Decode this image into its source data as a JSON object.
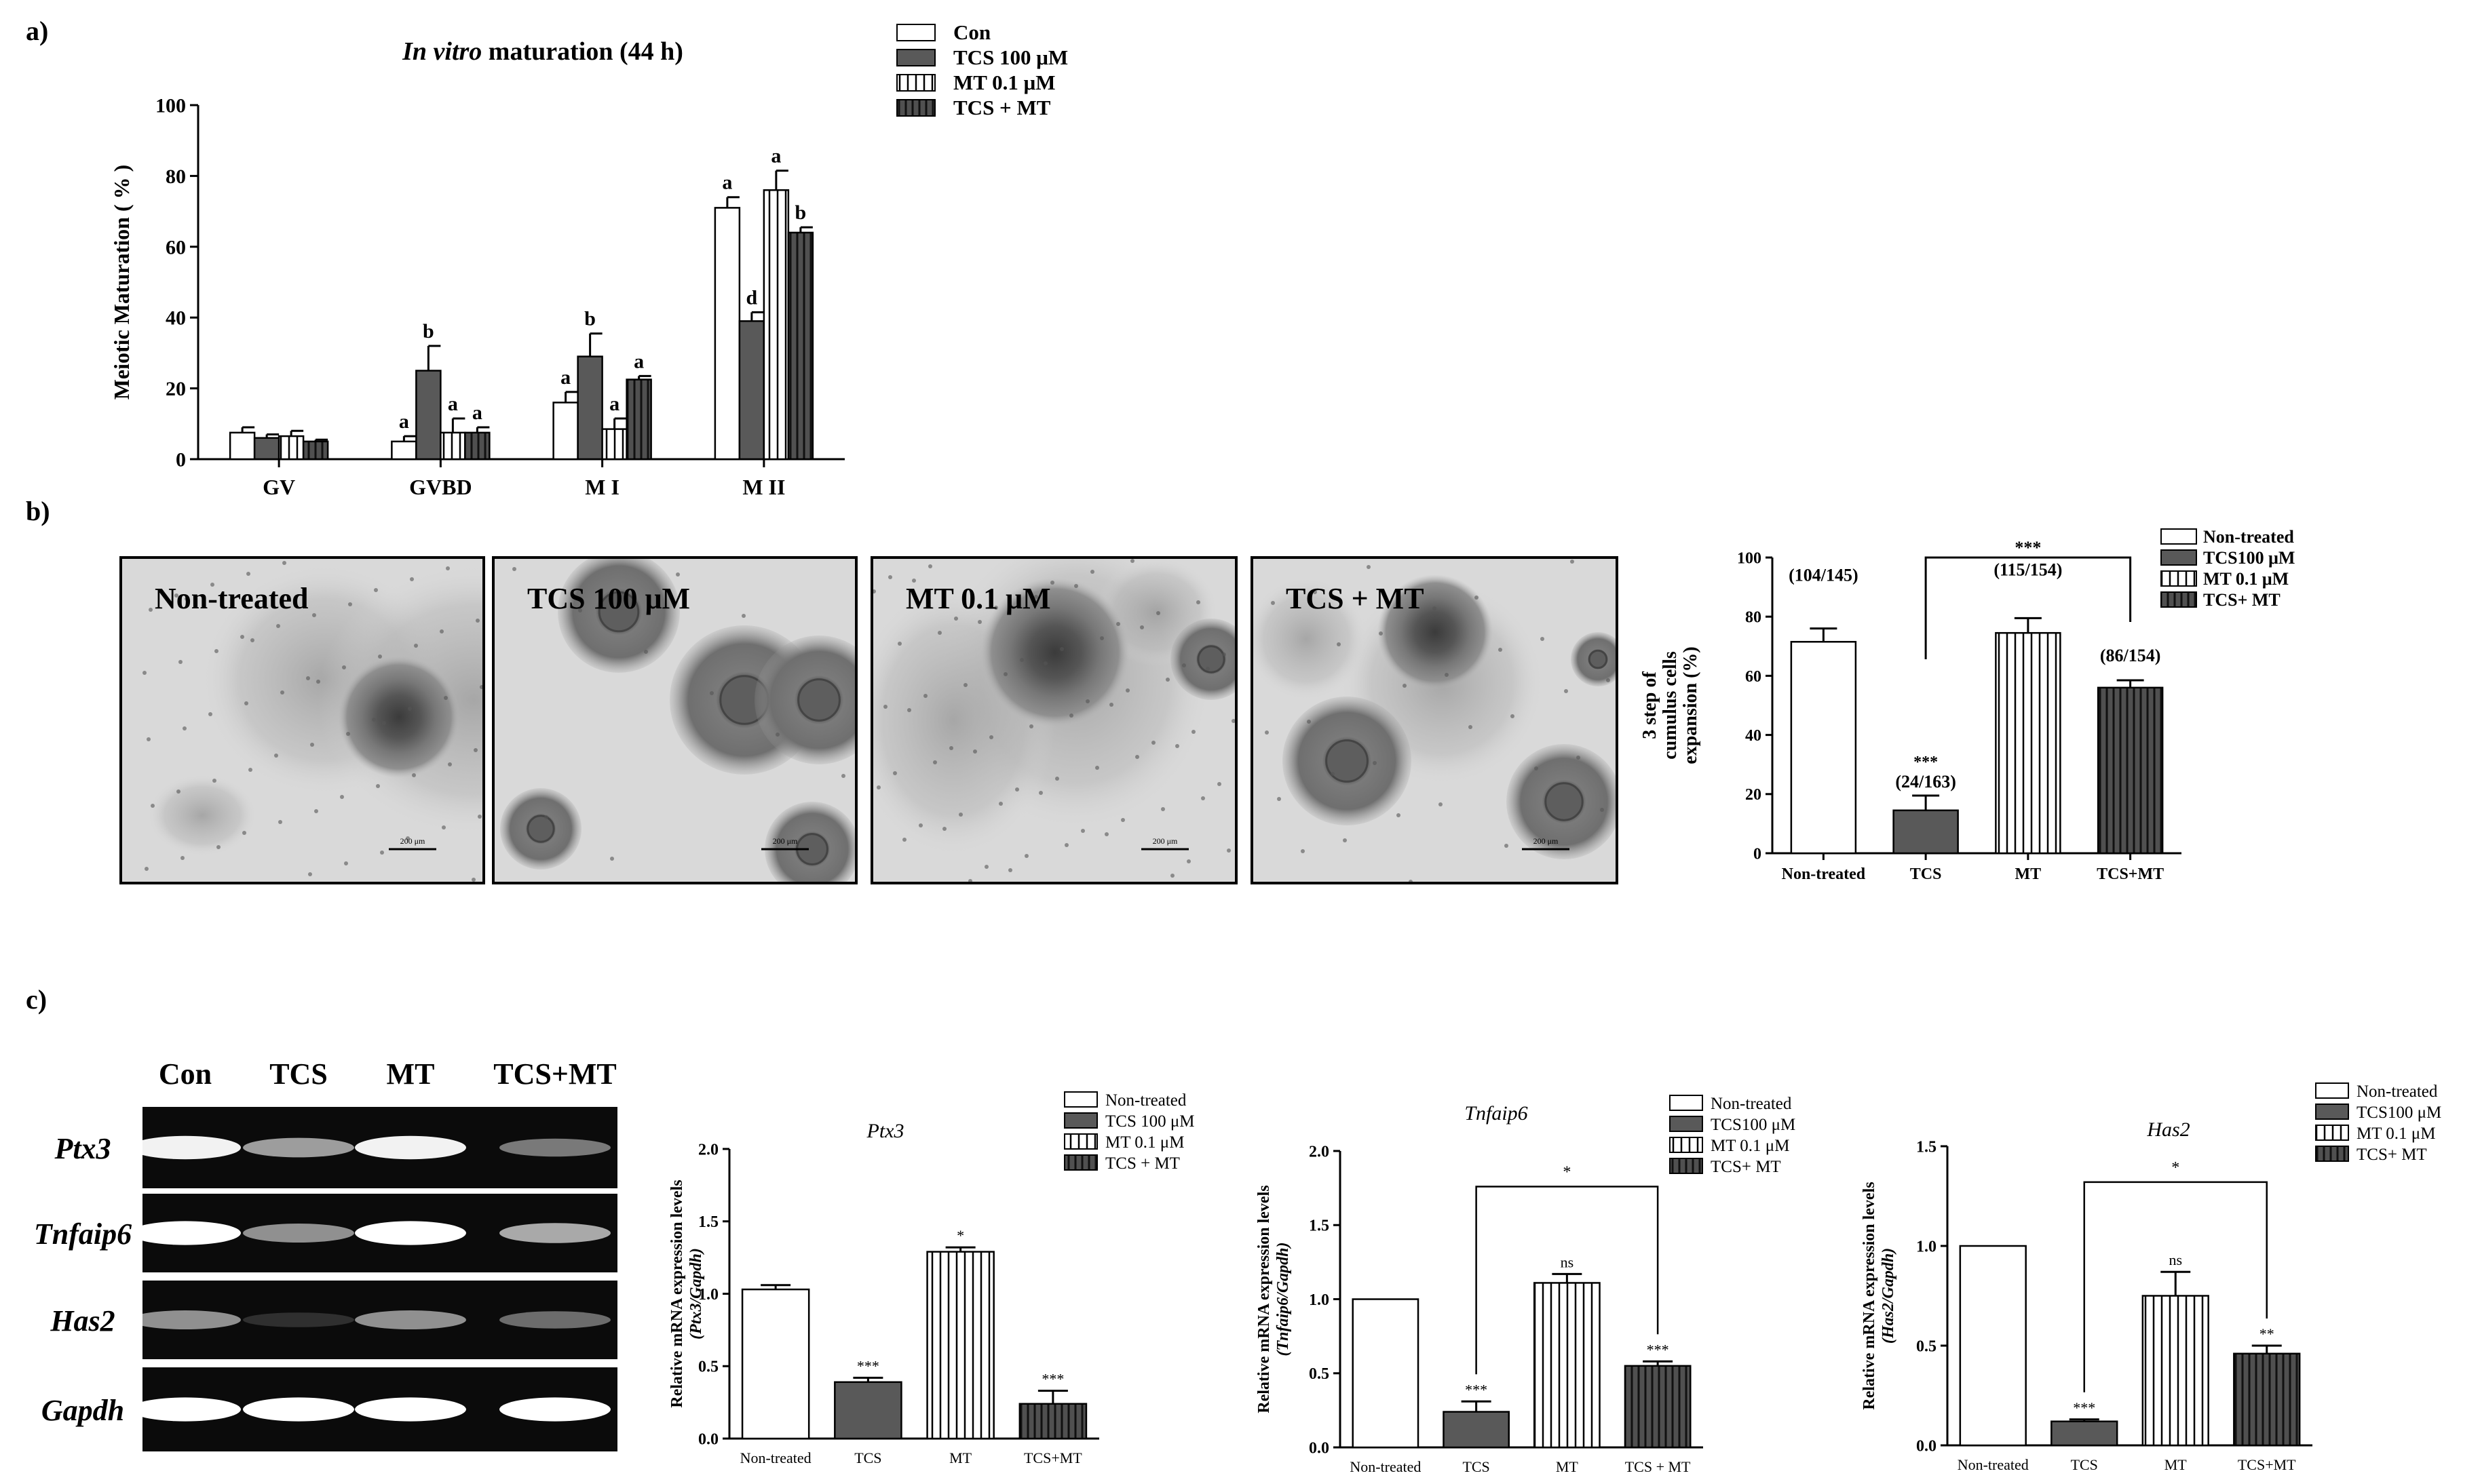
{
  "panel_labels": [
    "a)",
    "b)",
    "c)"
  ],
  "patterns": {
    "Con": "open",
    "TCS": "solid",
    "MT": "vlines",
    "TCS+MT": "dark-vlines"
  },
  "colors": {
    "solid": "#595959",
    "dark": "#3a3a3a",
    "line": "#000000",
    "fill_open": "#ffffff"
  },
  "chart_data": [
    {
      "id": "a",
      "type": "bar",
      "title_italic": "In vitro",
      "title_rest": " maturation (44 h)",
      "ylabel": "Meiotic Maturation ( % )",
      "xlabel": "",
      "ylim": [
        0,
        100
      ],
      "yticks": [
        0,
        20,
        40,
        60,
        80,
        100
      ],
      "categories": [
        "GV",
        "GVBD",
        "M I",
        "M II"
      ],
      "legend": [
        "Con",
        "TCS 100 μM",
        "MT 0.1 μM",
        "TCS + MT"
      ],
      "legend_position": "top-right",
      "series": [
        {
          "name": "Con",
          "pattern": "open",
          "values": [
            7.5,
            5,
            16,
            71
          ],
          "errors": [
            1.5,
            1.5,
            3,
            3
          ],
          "labels": [
            "",
            "a",
            "a",
            "a"
          ]
        },
        {
          "name": "TCS 100 μM",
          "pattern": "solid",
          "values": [
            6,
            25,
            29,
            39
          ],
          "errors": [
            1,
            7,
            6.5,
            2.5
          ],
          "labels": [
            "",
            "b",
            "b",
            "d"
          ]
        },
        {
          "name": "MT 0.1 μM",
          "pattern": "vlines",
          "values": [
            6.5,
            7.5,
            8.5,
            76
          ],
          "errors": [
            1.5,
            4,
            3,
            5.5
          ],
          "labels": [
            "",
            "a",
            "a",
            "a"
          ]
        },
        {
          "name": "TCS + MT",
          "pattern": "dark-vlines",
          "values": [
            5,
            7.5,
            22.5,
            64
          ],
          "errors": [
            0.5,
            1.5,
            1,
            1.5
          ],
          "labels": [
            "",
            "a",
            "a",
            "b"
          ]
        }
      ]
    },
    {
      "id": "b",
      "type": "bar",
      "title": "",
      "ylabel_lines": [
        "3 step of",
        "cumulus cells",
        "expansion (%)"
      ],
      "ylim": [
        0,
        100
      ],
      "yticks": [
        0,
        20,
        40,
        60,
        80,
        100
      ],
      "categories": [
        "Non-treated",
        "TCS",
        "MT",
        "TCS+MT"
      ],
      "patterns": [
        "open",
        "solid",
        "vlines",
        "dark-vlines"
      ],
      "values": [
        71.5,
        14.5,
        74.5,
        56
      ],
      "errors": [
        4.5,
        5,
        5,
        2.5
      ],
      "bar_labels": [
        "(104/145)",
        "(24/163)",
        "(115/154)",
        "(86/154)"
      ],
      "stars": [
        "",
        "***",
        "",
        ""
      ],
      "bracket": {
        "from": 1,
        "to": 3,
        "label": "***"
      },
      "legend": [
        "Non-treated",
        "TCS100 μM",
        "MT 0.1 μM",
        "TCS+ MT"
      ],
      "legend_position": "top-right"
    },
    {
      "id": "c1",
      "type": "bar",
      "title": "Ptx3",
      "ylabel": "Relative mRNA expression levels",
      "ylabel2": "(Ptx3/Gapdh)",
      "ylim": [
        0,
        2.0
      ],
      "yticks": [
        "0.0",
        "0.5",
        "1.0",
        "1.5",
        "2.0"
      ],
      "categories": [
        "Non-treated",
        "TCS",
        "MT",
        "TCS+MT"
      ],
      "patterns": [
        "open",
        "solid",
        "vlines",
        "dark-vlines"
      ],
      "values": [
        1.03,
        0.39,
        1.29,
        0.24
      ],
      "errors": [
        0.03,
        0.03,
        0.03,
        0.09
      ],
      "stars": [
        "",
        "***",
        "*",
        "***"
      ],
      "legend": [
        "Non-treated",
        "TCS 100 μM",
        "MT 0.1 μM",
        "TCS + MT"
      ],
      "legend_position": "top-right"
    },
    {
      "id": "c2",
      "type": "bar",
      "title": "Tnfaip6",
      "ylabel": "Relative mRNA expression levels",
      "ylabel2": "(Tnfaip6/Gapdh)",
      "ylim": [
        0,
        2.0
      ],
      "yticks": [
        "0.0",
        "0.5",
        "1.0",
        "1.5",
        "2.0"
      ],
      "categories": [
        "Non-treated",
        "TCS",
        "MT",
        "TCS + MT"
      ],
      "patterns": [
        "open",
        "solid",
        "vlines",
        "dark-vlines"
      ],
      "values": [
        1.0,
        0.24,
        1.11,
        0.55
      ],
      "errors": [
        0,
        0.07,
        0.06,
        0.03
      ],
      "stars": [
        "",
        "***",
        "ns",
        "***"
      ],
      "bracket": {
        "from": 1,
        "to": 3,
        "label": "*"
      },
      "legend": [
        "Non-treated",
        "TCS100 μM",
        "MT 0.1 μM",
        "TCS+ MT"
      ],
      "legend_position": "top-right"
    },
    {
      "id": "c3",
      "type": "bar",
      "title": "Has2",
      "ylabel": "Relative mRNA expression levels",
      "ylabel2": "(Has2/Gapdh)",
      "ylim": [
        0,
        1.5
      ],
      "yticks": [
        "0.0",
        "0.5",
        "1.0",
        "1.5"
      ],
      "categories": [
        "Non-treated",
        "TCS",
        "MT",
        "TCS+MT"
      ],
      "patterns": [
        "open",
        "solid",
        "vlines",
        "dark-vlines"
      ],
      "values": [
        1.0,
        0.12,
        0.75,
        0.46
      ],
      "errors": [
        0,
        0.01,
        0.12,
        0.04
      ],
      "stars": [
        "",
        "***",
        "ns",
        "**"
      ],
      "bracket": {
        "from": 1,
        "to": 3,
        "label": "*"
      },
      "legend": [
        "Non-treated",
        "TCS100 μM",
        "MT 0.1 μM",
        "TCS+ MT"
      ],
      "legend_position": "top-right"
    }
  ],
  "micrographs": [
    {
      "label": "Non-treated",
      "scale": "200 μm"
    },
    {
      "label": "TCS 100 μM",
      "scale": "200 μm"
    },
    {
      "label": "MT 0.1 μM",
      "scale": "200 μm"
    },
    {
      "label": "TCS + MT",
      "scale": "200 μm"
    }
  ],
  "gel": {
    "columns": [
      "Con",
      "TCS",
      "MT",
      "TCS+MT"
    ],
    "rows": [
      {
        "gene": "Ptx3",
        "intensity": [
          0.95,
          0.6,
          0.95,
          0.45
        ]
      },
      {
        "gene": "Tnfaip6",
        "intensity": [
          1.0,
          0.55,
          1.0,
          0.65
        ]
      },
      {
        "gene": "Has2",
        "intensity": [
          0.55,
          0.15,
          0.55,
          0.4
        ]
      },
      {
        "gene": "Gapdh",
        "intensity": [
          1.0,
          1.0,
          1.0,
          1.0
        ]
      }
    ]
  }
}
